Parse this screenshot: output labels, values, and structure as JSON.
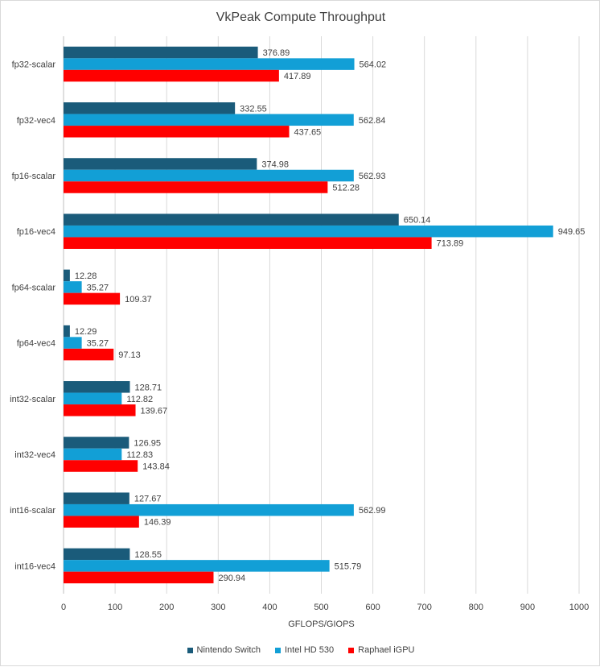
{
  "chart_data": {
    "type": "bar",
    "orientation": "horizontal",
    "title": "VkPeak Compute Throughput",
    "xlabel": "GFLOPS/GIOPS",
    "ylabel": "",
    "xlim": [
      0,
      1000
    ],
    "xticks": [
      0,
      100,
      200,
      300,
      400,
      500,
      600,
      700,
      800,
      900,
      1000
    ],
    "grid": true,
    "legend_position": "bottom",
    "categories": [
      "fp32-scalar",
      "fp32-vec4",
      "fp16-scalar",
      "fp16-vec4",
      "fp64-scalar",
      "fp64-vec4",
      "int32-scalar",
      "int32-vec4",
      "int16-scalar",
      "int16-vec4"
    ],
    "series": [
      {
        "name": "Nintendo Switch",
        "color": "#1a5b7a",
        "values": [
          376.89,
          332.55,
          374.98,
          650.14,
          12.28,
          12.29,
          128.71,
          126.95,
          127.67,
          128.55
        ]
      },
      {
        "name": "Intel HD 530",
        "color": "#129fd6",
        "values": [
          564.02,
          562.84,
          562.93,
          949.65,
          35.27,
          35.27,
          112.82,
          112.83,
          562.99,
          515.79
        ]
      },
      {
        "name": "Raphael iGPU",
        "color": "#ff0000",
        "values": [
          417.89,
          437.65,
          512.28,
          713.89,
          109.37,
          97.13,
          139.67,
          143.84,
          146.39,
          290.94
        ]
      }
    ]
  }
}
